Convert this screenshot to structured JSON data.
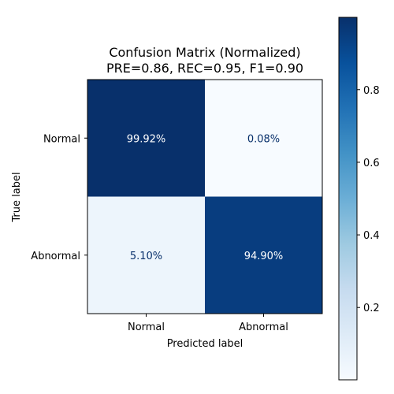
{
  "chart_data": {
    "type": "heatmap",
    "title": "Confusion Matrix (Normalized)",
    "subtitle": "PRE=0.86, REC=0.95, F1=0.90",
    "xlabel": "Predicted label",
    "ylabel": "True label",
    "x_categories": [
      "Normal",
      "Abnormal"
    ],
    "y_categories": [
      "Normal",
      "Abnormal"
    ],
    "values": [
      [
        0.9992,
        0.0008
      ],
      [
        0.051,
        0.949
      ]
    ],
    "cell_labels": [
      [
        "99.92%",
        "0.08%"
      ],
      [
        "5.10%",
        "94.90%"
      ]
    ],
    "colormap": "Blues",
    "colorbar": {
      "range": [
        0.0008,
        0.9992
      ],
      "ticks": [
        0.2,
        0.4,
        0.6,
        0.8
      ],
      "tick_labels": [
        "0.2",
        "0.4",
        "0.6",
        "0.8"
      ]
    },
    "colors": {
      "light_text": "#ffffff",
      "dark_text": "#08306b"
    }
  }
}
